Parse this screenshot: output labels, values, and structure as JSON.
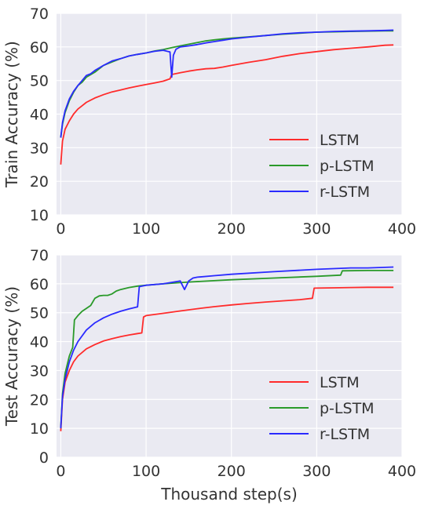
{
  "chart_data": [
    {
      "type": "line",
      "title": "",
      "xlabel": "",
      "ylabel": "Train Accuracy (%)",
      "xlim": [
        -5,
        400
      ],
      "ylim": [
        10,
        70
      ],
      "xticks": [
        0,
        100,
        200,
        300,
        400
      ],
      "yticks": [
        10,
        20,
        30,
        40,
        50,
        60,
        70
      ],
      "grid": true,
      "legend_position": "lower-right",
      "series": [
        {
          "name": "LSTM",
          "color": "#ff2b2b",
          "x": [
            0,
            2,
            5,
            10,
            15,
            20,
            25,
            30,
            40,
            50,
            60,
            70,
            80,
            90,
            100,
            110,
            120,
            128,
            130,
            140,
            150,
            160,
            170,
            180,
            190,
            200,
            220,
            240,
            260,
            280,
            300,
            320,
            340,
            360,
            380,
            390
          ],
          "y": [
            25,
            32,
            35.5,
            38,
            40,
            41.5,
            42.5,
            43.5,
            44.8,
            45.8,
            46.6,
            47.2,
            47.8,
            48.3,
            48.8,
            49.3,
            49.8,
            50.5,
            51.8,
            52.3,
            52.8,
            53.2,
            53.5,
            53.6,
            54,
            54.5,
            55.4,
            56.2,
            57.2,
            58,
            58.6,
            59.2,
            59.6,
            60,
            60.5,
            60.6
          ]
        },
        {
          "name": "p-LSTM",
          "color": "#2a9a2a",
          "x": [
            0,
            2,
            5,
            10,
            15,
            20,
            25,
            30,
            40,
            50,
            60,
            70,
            80,
            90,
            100,
            110,
            120,
            130,
            140,
            150,
            160,
            170,
            180,
            190,
            200,
            220,
            240,
            260,
            280,
            300,
            320,
            340,
            360,
            380,
            390
          ],
          "y": [
            33,
            37,
            40.5,
            44,
            46.5,
            48.5,
            49.5,
            51,
            52.5,
            54.5,
            55.5,
            56.5,
            57.3,
            57.8,
            58.2,
            58.8,
            59.2,
            59.8,
            60.3,
            60.8,
            61.3,
            61.8,
            62.1,
            62.4,
            62.6,
            63,
            63.4,
            63.8,
            64.1,
            64.4,
            64.5,
            64.6,
            64.7,
            64.8,
            64.8
          ]
        },
        {
          "name": "r-LSTM",
          "color": "#2a2aff",
          "x": [
            0,
            2,
            5,
            10,
            15,
            20,
            25,
            30,
            35,
            40,
            50,
            60,
            70,
            80,
            90,
            100,
            110,
            120,
            128,
            130,
            132,
            135,
            140,
            150,
            160,
            170,
            180,
            190,
            200,
            220,
            240,
            260,
            280,
            300,
            320,
            340,
            360,
            380,
            390
          ],
          "y": [
            33,
            37.5,
            41,
            44.5,
            46.8,
            48.5,
            50,
            51.5,
            52,
            53,
            54.5,
            55.8,
            56.5,
            57.3,
            57.8,
            58.2,
            58.7,
            59,
            58.5,
            51,
            57.5,
            59.3,
            60,
            60.3,
            60.7,
            61.2,
            61.6,
            62,
            62.4,
            62.9,
            63.4,
            63.9,
            64.2,
            64.4,
            64.6,
            64.7,
            64.8,
            64.9,
            65
          ]
        }
      ]
    },
    {
      "type": "line",
      "title": "",
      "xlabel": "Thousand step(s)",
      "ylabel": "Test Accuracy (%)",
      "xlim": [
        -5,
        400
      ],
      "ylim": [
        0,
        70
      ],
      "xticks": [
        0,
        100,
        200,
        300,
        400
      ],
      "yticks": [
        0,
        10,
        20,
        30,
        40,
        50,
        60,
        70
      ],
      "grid": true,
      "legend_position": "lower-right",
      "series": [
        {
          "name": "LSTM",
          "color": "#ff2b2b",
          "x": [
            0,
            2,
            5,
            10,
            15,
            20,
            30,
            40,
            50,
            60,
            70,
            80,
            90,
            95,
            97,
            100,
            120,
            140,
            160,
            180,
            200,
            220,
            240,
            260,
            280,
            295,
            297,
            320,
            340,
            360,
            380,
            390
          ],
          "y": [
            9,
            20,
            26,
            30,
            33,
            35,
            37.5,
            39,
            40.2,
            41,
            41.7,
            42.3,
            42.8,
            43,
            48.5,
            49,
            49.8,
            50.6,
            51.4,
            52.1,
            52.7,
            53.2,
            53.7,
            54.1,
            54.5,
            55,
            58.5,
            58.6,
            58.7,
            58.8,
            58.8,
            58.8
          ]
        },
        {
          "name": "p-LSTM",
          "color": "#2a9a2a",
          "x": [
            0,
            2,
            5,
            10,
            14,
            16,
            20,
            25,
            30,
            35,
            40,
            45,
            50,
            55,
            60,
            65,
            70,
            80,
            90,
            100,
            120,
            150,
            200,
            250,
            300,
            328,
            330,
            360,
            390
          ],
          "y": [
            10,
            22,
            29,
            35,
            38,
            47.5,
            49,
            50.5,
            51.5,
            52.5,
            55,
            55.8,
            56,
            56,
            56.5,
            57.5,
            58,
            58.7,
            59.2,
            59.5,
            60,
            60.6,
            61.4,
            62,
            62.6,
            63,
            64.5,
            64.6,
            64.6
          ]
        },
        {
          "name": "r-LSTM",
          "color": "#2a2aff",
          "x": [
            0,
            2,
            5,
            10,
            15,
            20,
            30,
            40,
            50,
            60,
            70,
            80,
            90,
            92,
            100,
            120,
            140,
            145,
            150,
            155,
            160,
            180,
            200,
            250,
            300,
            340,
            360,
            390
          ],
          "y": [
            10,
            21,
            27,
            33,
            37,
            40,
            44,
            46.5,
            48.2,
            49.5,
            50.5,
            51.3,
            52,
            59,
            59.5,
            60,
            61,
            58,
            61,
            62,
            62.3,
            62.8,
            63.3,
            64.2,
            65,
            65.5,
            65.5,
            65.8
          ]
        }
      ]
    }
  ]
}
